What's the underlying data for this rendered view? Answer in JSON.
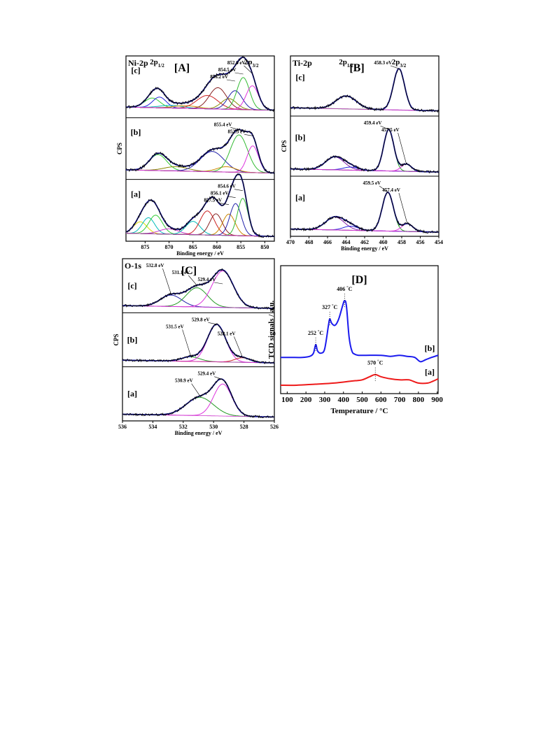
{
  "chart_data": [
    {
      "panel": "[A]",
      "type": "line",
      "core_level": "Ni-2p",
      "xlabel": "Binding energy / eV",
      "ylabel": "CPS",
      "xlim": [
        848,
        879
      ],
      "x_reversed": true,
      "x_ticks": [
        875,
        870,
        865,
        860,
        855,
        850
      ],
      "traces": [
        {
          "label": "[c]",
          "spin_orbit": [
            {
              "text": "2p",
              "sub": "1/2",
              "x": 872.5
            },
            {
              "text": "2p",
              "sub": "3/2",
              "x": 852.8
            }
          ],
          "baseline": 0.1,
          "components": [
            {
              "center": 873.5,
              "height": 0.18,
              "width": 1.6,
              "color": "#33cc33"
            },
            {
              "center": 872.0,
              "height": 0.2,
              "width": 1.4,
              "color": "#2222dd"
            },
            {
              "center": 869.5,
              "height": 0.05,
              "width": 2.5,
              "color": "#00bbbb"
            },
            {
              "center": 866.5,
              "height": 0.05,
              "width": 2.5,
              "color": "#cc8800"
            },
            {
              "center": 862.0,
              "height": 0.25,
              "width": 2.2,
              "color": "#cc2222"
            },
            {
              "center": 859.8,
              "height": 0.4,
              "width": 1.8,
              "color": "#882222"
            },
            {
              "center": 857.5,
              "height": 0.2,
              "width": 1.6,
              "color": "#888800"
            },
            {
              "center": 856.2,
              "height": 0.35,
              "width": 1.5,
              "color": "#2222aa"
            },
            {
              "center": 854.5,
              "height": 0.6,
              "width": 1.3,
              "color": "#33bb33"
            },
            {
              "center": 852.6,
              "height": 0.45,
              "width": 1.3,
              "color": "#dd33dd"
            }
          ],
          "annotations": [
            {
              "text": "852.6 eV",
              "x": 852.6
            },
            {
              "text": "854.5 eV",
              "x": 854.5
            },
            {
              "text": "856.2 eV",
              "x": 856.2
            }
          ]
        },
        {
          "label": "[b]",
          "baseline": 0.08,
          "components": [
            {
              "center": 872.3,
              "height": 0.3,
              "width": 1.8,
              "color": "#33cc33"
            },
            {
              "center": 868.5,
              "height": 0.08,
              "width": 2.5,
              "color": "#888800"
            },
            {
              "center": 861.0,
              "height": 0.38,
              "width": 2.5,
              "color": "#2222aa"
            },
            {
              "center": 858.0,
              "height": 0.1,
              "width": 2.0,
              "color": "#cc8800"
            },
            {
              "center": 855.4,
              "height": 0.7,
              "width": 1.8,
              "color": "#33bb33"
            },
            {
              "center": 852.5,
              "height": 0.5,
              "width": 1.2,
              "color": "#dd33dd"
            }
          ],
          "annotations": [
            {
              "text": "855.4 eV",
              "x": 855.4
            },
            {
              "text": "852.5 eV",
              "x": 852.5
            }
          ]
        },
        {
          "label": "[a]",
          "baseline": 0.05,
          "components": [
            {
              "center": 876.0,
              "height": 0.22,
              "width": 1.4,
              "color": "#dddd00"
            },
            {
              "center": 874.3,
              "height": 0.3,
              "width": 1.3,
              "color": "#00bbbb"
            },
            {
              "center": 872.8,
              "height": 0.35,
              "width": 1.4,
              "color": "#33cc33"
            },
            {
              "center": 870.0,
              "height": 0.1,
              "width": 2.0,
              "color": "#cc33cc"
            },
            {
              "center": 865.0,
              "height": 0.25,
              "width": 1.5,
              "color": "#00bbbb"
            },
            {
              "center": 862.0,
              "height": 0.45,
              "width": 1.5,
              "color": "#cc2222"
            },
            {
              "center": 860.2,
              "height": 0.4,
              "width": 1.3,
              "color": "#882222"
            },
            {
              "center": 857.5,
              "height": 0.4,
              "width": 1.3,
              "color": "#cc8800"
            },
            {
              "center": 856.1,
              "height": 0.6,
              "width": 1.2,
              "color": "#2222aa"
            },
            {
              "center": 854.6,
              "height": 0.7,
              "width": 1.1,
              "color": "#33bb33"
            }
          ],
          "annotations": [
            {
              "text": "854.6 eV",
              "x": 854.6
            },
            {
              "text": "856.1 eV",
              "x": 856.1
            },
            {
              "text": "857.5 eV",
              "x": 857.5
            }
          ]
        }
      ]
    },
    {
      "panel": "[B]",
      "type": "line",
      "core_level": "Ti-2p",
      "xlabel": "Binding energy / eV",
      "ylabel": "CPS",
      "xlim": [
        454,
        470
      ],
      "x_reversed": true,
      "x_ticks": [
        470,
        468,
        466,
        464,
        462,
        460,
        458,
        456,
        454
      ],
      "traces": [
        {
          "label": "[c]",
          "spin_orbit": [
            {
              "text": "2p",
              "sub": "1/2",
              "x": 464.0
            },
            {
              "text": "2p",
              "sub": "3/2",
              "x": 458.3
            }
          ],
          "baseline": 0.06,
          "components": [
            {
              "center": 464.0,
              "height": 0.25,
              "width": 1.1,
              "color": "#8822aa"
            },
            {
              "center": 458.3,
              "height": 0.8,
              "width": 0.6,
              "color": "#229922"
            }
          ],
          "annotations": [
            {
              "text": "458.3 eV",
              "x": 458.3
            }
          ]
        },
        {
          "label": "[b]",
          "baseline": 0.04,
          "components": [
            {
              "center": 465.2,
              "height": 0.25,
              "width": 1.0,
              "color": "#8822aa"
            },
            {
              "center": 463.5,
              "height": 0.06,
              "width": 0.8,
              "color": "#2222dd"
            },
            {
              "center": 459.4,
              "height": 0.8,
              "width": 0.55,
              "color": "#229922"
            },
            {
              "center": 457.5,
              "height": 0.14,
              "width": 0.55,
              "color": "#dd33dd"
            }
          ],
          "annotations": [
            {
              "text": "459.4 eV",
              "x": 459.4
            },
            {
              "text": "457.5 eV",
              "x": 457.5
            }
          ]
        },
        {
          "label": "[a]",
          "baseline": 0.04,
          "components": [
            {
              "center": 465.2,
              "height": 0.25,
              "width": 1.0,
              "color": "#8822aa"
            },
            {
              "center": 463.5,
              "height": 0.08,
              "width": 0.8,
              "color": "#2222dd"
            },
            {
              "center": 459.5,
              "height": 0.75,
              "width": 0.6,
              "color": "#229922"
            },
            {
              "center": 457.4,
              "height": 0.15,
              "width": 0.6,
              "color": "#dd33dd"
            }
          ],
          "annotations": [
            {
              "text": "459.5 eV",
              "x": 459.5
            },
            {
              "text": "457.4 eV",
              "x": 457.4
            }
          ]
        }
      ]
    },
    {
      "panel": "[C]",
      "type": "line",
      "core_level": "O-1s",
      "xlabel": "Binding energy / eV",
      "ylabel": "CPS",
      "xlim": [
        526,
        536
      ],
      "x_reversed": true,
      "x_ticks": [
        536,
        534,
        532,
        530,
        528,
        526
      ],
      "traces": [
        {
          "label": "[c]",
          "baseline": 0.05,
          "components": [
            {
              "center": 532.8,
              "height": 0.25,
              "width": 0.7,
              "color": "#2222aa"
            },
            {
              "center": 531.1,
              "height": 0.42,
              "width": 0.7,
              "color": "#229922"
            },
            {
              "center": 529.4,
              "height": 0.8,
              "width": 0.7,
              "color": "#dd33dd"
            }
          ],
          "annotations": [
            {
              "text": "532.8 eV",
              "x": 532.8
            },
            {
              "text": "531.1 eV",
              "x": 531.1
            },
            {
              "text": "529.4 eV",
              "x": 529.4
            }
          ]
        },
        {
          "label": "[b]",
          "baseline": 0.04,
          "components": [
            {
              "center": 531.5,
              "height": 0.1,
              "width": 0.6,
              "color": "#229922"
            },
            {
              "center": 529.8,
              "height": 0.82,
              "width": 0.6,
              "color": "#dd33dd"
            },
            {
              "center": 528.1,
              "height": 0.1,
              "width": 0.5,
              "color": "#cc2222"
            }
          ],
          "annotations": [
            {
              "text": "529.8 eV",
              "x": 529.8
            },
            {
              "text": "531.5 eV",
              "x": 531.5
            },
            {
              "text": "528.1 eV",
              "x": 528.1
            }
          ]
        },
        {
          "label": "[a]",
          "baseline": 0.04,
          "components": [
            {
              "center": 530.9,
              "height": 0.4,
              "width": 0.9,
              "color": "#229922"
            },
            {
              "center": 529.4,
              "height": 0.7,
              "width": 0.6,
              "color": "#dd33dd"
            }
          ],
          "annotations": [
            {
              "text": "529.4 eV",
              "x": 529.4
            },
            {
              "text": "530.9 eV",
              "x": 530.9
            }
          ]
        }
      ]
    },
    {
      "panel": "[D]",
      "type": "line",
      "xlabel": "Temperature / °C",
      "ylabel": "TCD signals / a.u.",
      "xlim": [
        65,
        905
      ],
      "x_ticks": [
        100,
        200,
        300,
        400,
        500,
        600,
        700,
        800,
        900
      ],
      "series": [
        {
          "name": "[b]",
          "color": "#1a1aee",
          "x": [
            65,
            120,
            180,
            220,
            240,
            252,
            262,
            280,
            300,
            320,
            327,
            337,
            355,
            375,
            395,
            406,
            416,
            430,
            445,
            460,
            480,
            520,
            600,
            650,
            700,
            740,
            780,
            810,
            840,
            870,
            905
          ],
          "y": [
            0.26,
            0.26,
            0.26,
            0.27,
            0.3,
            0.38,
            0.32,
            0.3,
            0.34,
            0.56,
            0.62,
            0.58,
            0.56,
            0.62,
            0.74,
            0.79,
            0.74,
            0.45,
            0.32,
            0.29,
            0.28,
            0.28,
            0.28,
            0.27,
            0.28,
            0.27,
            0.26,
            0.22,
            0.24,
            0.26,
            0.28
          ]
        },
        {
          "name": "[a]",
          "color": "#ee1a1a",
          "x": [
            65,
            150,
            250,
            350,
            450,
            500,
            540,
            570,
            600,
            650,
            700,
            750,
            800,
            850,
            880,
            905
          ],
          "y": [
            0.0,
            0.0,
            0.01,
            0.02,
            0.04,
            0.05,
            0.08,
            0.1,
            0.08,
            0.06,
            0.05,
            0.05,
            0.02,
            0.02,
            0.04,
            0.06
          ]
        }
      ],
      "peak_labels": [
        {
          "value": "252",
          "unit": "°C",
          "x": 252,
          "series": "[b]"
        },
        {
          "value": "327",
          "unit": "°C",
          "x": 327,
          "series": "[b]"
        },
        {
          "value": "406",
          "unit": "°C",
          "x": 406,
          "series": "[b]"
        },
        {
          "value": "570",
          "unit": "°C",
          "x": 570,
          "series": "[a]"
        }
      ]
    }
  ]
}
